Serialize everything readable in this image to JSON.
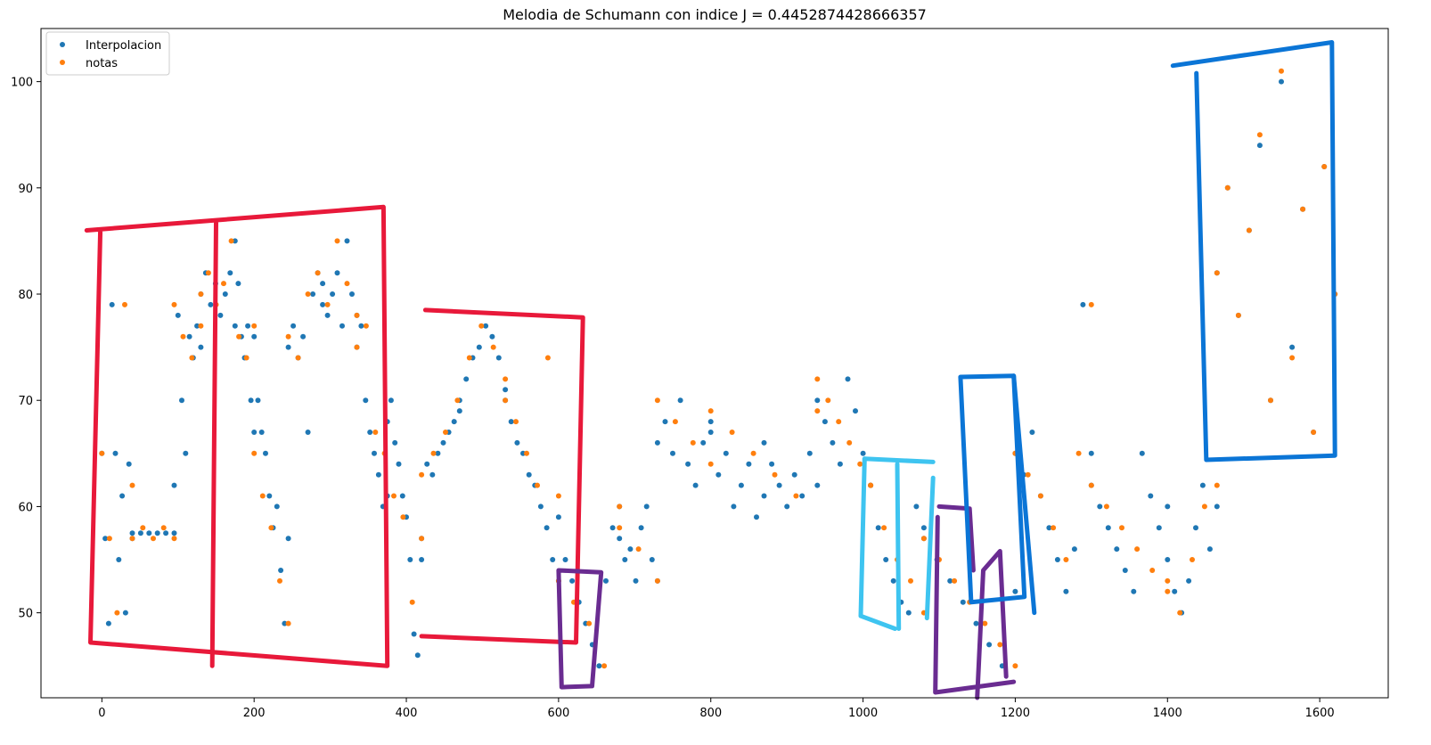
{
  "chart_data": {
    "type": "scatter",
    "title": "Melodia de Schumann con indice J = 0.4452874428666357",
    "xlabel": "",
    "ylabel": "",
    "xlim": [
      -80,
      1690
    ],
    "ylim": [
      42,
      105
    ],
    "xticks": [
      0,
      200,
      400,
      600,
      800,
      1000,
      1200,
      1400,
      1600
    ],
    "yticks": [
      50,
      60,
      70,
      80,
      90,
      100
    ],
    "legend_position": "upper-left",
    "series": [
      {
        "name": "Interpolacion",
        "color": "#1f77b4",
        "segments": [
          [
            0,
            40,
            65,
            57,
            49,
            79,
            65,
            55,
            61,
            50,
            64,
            57
          ],
          [
            40,
            95,
            57.5,
            57.5,
            57.5,
            57.5,
            57.5,
            57.5
          ],
          [
            95,
            130,
            62,
            78,
            70,
            65,
            76,
            74,
            77,
            75
          ],
          [
            130,
            175,
            80,
            82,
            79,
            81,
            78,
            80,
            82,
            77
          ],
          [
            175,
            200,
            85,
            81,
            76,
            74,
            77,
            70,
            67
          ],
          [
            200,
            245,
            76,
            70,
            67,
            65,
            61,
            58,
            60,
            54,
            49,
            57
          ],
          [
            245,
            290,
            75,
            77,
            74,
            76,
            67,
            80,
            82,
            79
          ],
          [
            290,
            335,
            81,
            78,
            80,
            82,
            77,
            85,
            80,
            78
          ],
          [
            335,
            375,
            75,
            77,
            70,
            67,
            65,
            63,
            60,
            61
          ],
          [
            375,
            420,
            68,
            70,
            66,
            64,
            61,
            59,
            55,
            48,
            46,
            57
          ],
          [
            420,
            470,
            55,
            64,
            63,
            65,
            66,
            67,
            68,
            70
          ],
          [
            470,
            530,
            69,
            72,
            74,
            75,
            77,
            76,
            74,
            71
          ],
          [
            530,
            600,
            70,
            68,
            66,
            65,
            63,
            62,
            60,
            58,
            55,
            53
          ],
          [
            600,
            680,
            59,
            55,
            53,
            51,
            49,
            47,
            45,
            53,
            58,
            60
          ],
          [
            680,
            730,
            57,
            55,
            56,
            53,
            58,
            60,
            55,
            53
          ],
          [
            730,
            800,
            66,
            68,
            65,
            70,
            64,
            62,
            66,
            68
          ],
          [
            800,
            870,
            67,
            63,
            65,
            60,
            62,
            64,
            59,
            61
          ],
          [
            870,
            940,
            66,
            64,
            62,
            60,
            63,
            61,
            65,
            62
          ],
          [
            940,
            1010,
            70,
            68,
            66,
            64,
            72,
            69,
            65,
            62
          ],
          [
            1010,
            1080,
            62,
            58,
            55,
            53,
            51,
            50,
            60,
            58
          ],
          [
            1080,
            1200,
            57,
            55,
            53,
            51,
            49,
            47,
            45,
            52
          ],
          [
            1200,
            1300,
            65,
            63,
            67,
            61,
            58,
            55,
            52,
            56,
            79,
            65
          ],
          [
            1300,
            1400,
            62,
            60,
            58,
            56,
            54,
            52,
            65,
            61,
            58,
            60
          ],
          [
            1400,
            1465,
            55,
            52,
            50,
            53,
            58,
            62,
            56,
            60
          ],
          [
            1465,
            1620,
            82,
            90,
            78,
            86,
            94,
            70,
            100,
            75,
            88,
            67,
            92,
            80
          ]
        ]
      },
      {
        "name": "notas",
        "color": "#ff7f0e",
        "segments": [
          [
            0,
            40,
            65,
            57,
            50,
            79,
            62
          ],
          [
            40,
            95,
            57,
            58,
            57,
            58,
            57
          ],
          [
            95,
            130,
            79,
            76,
            74,
            77
          ],
          [
            130,
            200,
            80,
            82,
            79,
            81,
            85,
            76,
            74,
            77
          ],
          [
            200,
            245,
            65,
            61,
            58,
            53,
            49
          ],
          [
            245,
            335,
            76,
            74,
            80,
            82,
            79,
            85,
            81,
            78
          ],
          [
            335,
            420,
            75,
            77,
            67,
            65,
            61,
            59,
            51,
            57
          ],
          [
            420,
            530,
            63,
            65,
            67,
            70,
            74,
            77,
            75,
            72
          ],
          [
            530,
            600,
            70,
            68,
            65,
            62,
            74,
            61
          ],
          [
            600,
            680,
            53,
            51,
            49,
            45,
            60
          ],
          [
            680,
            730,
            58,
            56,
            53
          ],
          [
            730,
            800,
            70,
            68,
            66,
            64
          ],
          [
            800,
            940,
            69,
            67,
            65,
            63,
            61,
            69
          ],
          [
            940,
            1010,
            72,
            70,
            68,
            66,
            64,
            62
          ],
          [
            1010,
            1080,
            62,
            58,
            55,
            53,
            50
          ],
          [
            1080,
            1200,
            57,
            55,
            53,
            51,
            49,
            47,
            45
          ],
          [
            1200,
            1300,
            65,
            63,
            61,
            58,
            55,
            65,
            79
          ],
          [
            1300,
            1400,
            62,
            60,
            58,
            56,
            54,
            52
          ],
          [
            1400,
            1465,
            53,
            50,
            55,
            60,
            62
          ],
          [
            1465,
            1620,
            82,
            90,
            78,
            86,
            95,
            70,
            101,
            74,
            88,
            67,
            92,
            80
          ]
        ]
      }
    ]
  },
  "annotations": [
    {
      "color": "#e8193a",
      "points": [
        [
          -20,
          86
        ],
        [
          370,
          88.2
        ],
        [
          375,
          45
        ],
        [
          -15,
          47.2
        ],
        [
          -2,
          86
        ]
      ]
    },
    {
      "color": "#e8193a",
      "points": [
        [
          150,
          86.7
        ],
        [
          145,
          45
        ]
      ]
    },
    {
      "color": "#e8193a",
      "points": [
        [
          425,
          78.5
        ],
        [
          632,
          77.8
        ],
        [
          623,
          47.2
        ],
        [
          420,
          47.8
        ]
      ]
    },
    {
      "color": "#6a2c91",
      "points": [
        [
          600,
          54
        ],
        [
          656,
          53.8
        ],
        [
          644,
          43.1
        ],
        [
          604,
          43
        ],
        [
          600,
          54
        ]
      ]
    },
    {
      "color": "#6a2c91",
      "points": [
        [
          1100,
          60
        ],
        [
          1140,
          59.8
        ],
        [
          1145,
          54
        ]
      ]
    },
    {
      "color": "#6a2c91",
      "points": [
        [
          1098,
          59
        ],
        [
          1095,
          42.5
        ],
        [
          1198,
          43.5
        ]
      ]
    },
    {
      "color": "#6a2c91",
      "points": [
        [
          1150,
          42
        ],
        [
          1158,
          54
        ],
        [
          1180,
          55.8
        ],
        [
          1188,
          44
        ]
      ]
    },
    {
      "color": "#3ec4f0",
      "points": [
        [
          1002,
          64.5
        ],
        [
          1092,
          64.2
        ]
      ]
    },
    {
      "color": "#3ec4f0",
      "points": [
        [
          1002,
          64.5
        ],
        [
          997,
          49.7
        ],
        [
          1042,
          48.5
        ]
      ]
    },
    {
      "color": "#3ec4f0",
      "points": [
        [
          1045,
          64
        ],
        [
          1047,
          48.5
        ]
      ]
    },
    {
      "color": "#3ec4f0",
      "points": [
        [
          1092,
          62.7
        ],
        [
          1084,
          49.5
        ]
      ]
    },
    {
      "color": "#0b75d6",
      "points": [
        [
          1128,
          72.2
        ],
        [
          1198,
          72.3
        ],
        [
          1212,
          51.5
        ],
        [
          1142,
          51
        ],
        [
          1128,
          72.2
        ]
      ]
    },
    {
      "color": "#0b75d6",
      "points": [
        [
          1198,
          72.3
        ],
        [
          1225,
          50
        ]
      ]
    },
    {
      "color": "#0b75d6",
      "points": [
        [
          1407,
          101.5
        ],
        [
          1616,
          103.7
        ],
        [
          1620,
          64.8
        ],
        [
          1451,
          64.4
        ],
        [
          1438,
          100.8
        ]
      ]
    }
  ]
}
